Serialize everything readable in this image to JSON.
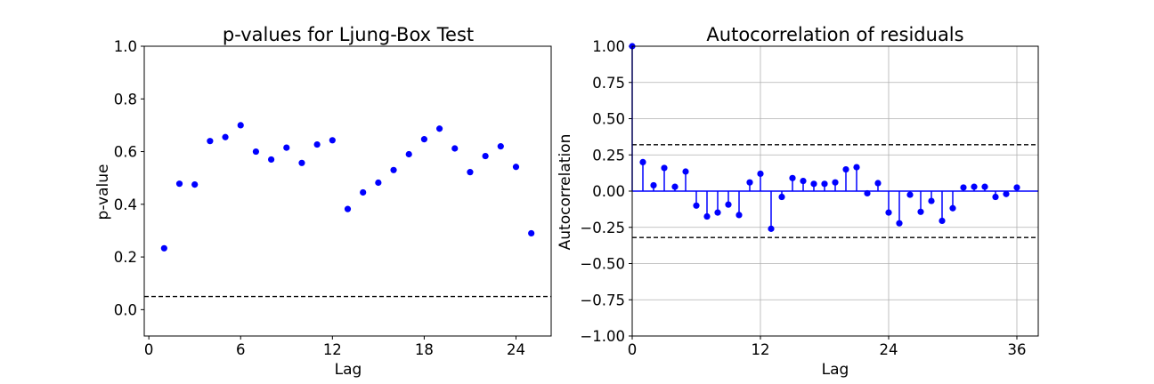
{
  "chart_data": [
    {
      "type": "scatter",
      "title": "p-values for Ljung-Box Test",
      "xlabel": "Lag",
      "ylabel": "p-value",
      "xlim": [
        -0.3,
        26.3
      ],
      "ylim": [
        -0.1,
        1.0
      ],
      "xticks": [
        0,
        6,
        12,
        18,
        24
      ],
      "yticks": [
        0.0,
        0.2,
        0.4,
        0.6,
        0.8,
        1.0
      ],
      "ytick_labels": [
        "0.0",
        "0.2",
        "0.4",
        "0.6",
        "0.8",
        "1.0"
      ],
      "grid": false,
      "reference_line": 0.05,
      "color": "#0000ff",
      "series": [
        {
          "x": [
            1,
            2,
            3,
            4,
            5,
            6,
            7,
            8,
            9,
            10,
            11,
            12,
            13,
            14,
            15,
            16,
            17,
            18,
            19,
            20,
            21,
            22,
            23,
            24,
            25
          ],
          "values": [
            0.233,
            0.478,
            0.475,
            0.64,
            0.655,
            0.7,
            0.6,
            0.57,
            0.615,
            0.557,
            0.627,
            0.643,
            0.382,
            0.445,
            0.482,
            0.53,
            0.59,
            0.647,
            0.687,
            0.612,
            0.522,
            0.583,
            0.62,
            0.542,
            0.29
          ]
        }
      ]
    },
    {
      "type": "stem",
      "title": "Autocorrelation of residuals",
      "xlabel": "Lag",
      "ylabel": "Autocorrelation",
      "xlim": [
        0,
        38
      ],
      "ylim": [
        -1.0,
        1.0
      ],
      "xticks": [
        0,
        12,
        24,
        36
      ],
      "yticks": [
        -1.0,
        -0.75,
        -0.5,
        -0.25,
        0.0,
        0.25,
        0.5,
        0.75,
        1.0
      ],
      "ytick_labels": [
        "−1.00",
        "−0.75",
        "−0.50",
        "−0.25",
        "0.00",
        "0.25",
        "0.50",
        "0.75",
        "1.00"
      ],
      "grid": true,
      "confidence_band": [
        -0.32,
        0.32
      ],
      "color": "#0000ff",
      "series": [
        {
          "x": [
            0,
            1,
            2,
            3,
            4,
            5,
            6,
            7,
            8,
            9,
            10,
            11,
            12,
            13,
            14,
            15,
            16,
            17,
            18,
            19,
            20,
            21,
            22,
            23,
            24,
            25,
            26,
            27,
            28,
            29,
            30,
            31,
            32,
            33,
            34,
            35,
            36
          ],
          "values": [
            1.0,
            0.2,
            0.04,
            0.16,
            0.03,
            0.135,
            -0.1,
            -0.175,
            -0.148,
            -0.093,
            -0.165,
            0.06,
            0.12,
            -0.26,
            -0.04,
            0.09,
            0.07,
            0.05,
            0.05,
            0.06,
            0.15,
            0.165,
            -0.015,
            0.055,
            -0.148,
            -0.222,
            -0.025,
            -0.143,
            -0.068,
            -0.205,
            -0.118,
            0.025,
            0.03,
            0.03,
            -0.04,
            -0.02,
            0.025
          ]
        }
      ]
    }
  ]
}
